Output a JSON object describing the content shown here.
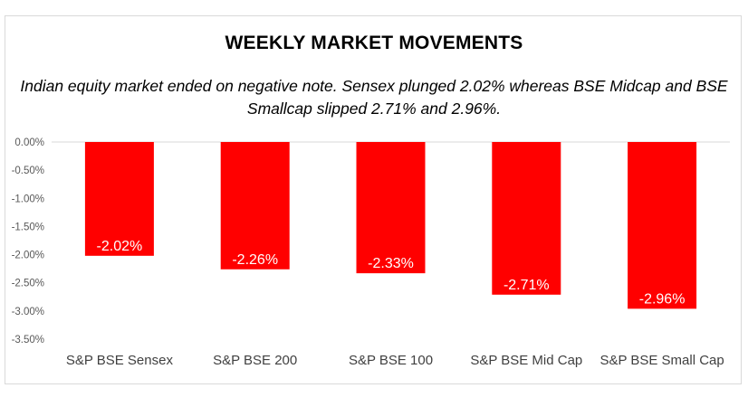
{
  "title": "WEEKLY MARKET MOVEMENTS",
  "subtitle": "Indian equity market ended on negative note. Sensex plunged 2.02% whereas BSE Midcap and BSE Smallcap slipped 2.71% and 2.96%.",
  "colors": {
    "bar": "#ff0000",
    "label_text": "#ffffff",
    "axis_text": "#595959",
    "category_text": "#404040",
    "axis_line": "#d9d9d9"
  },
  "chart_data": {
    "type": "bar",
    "title": "WEEKLY MARKET MOVEMENTS",
    "xlabel": "",
    "ylabel": "",
    "categories": [
      "S&P BSE Sensex",
      "S&P BSE 200",
      "S&P BSE 100",
      "S&P BSE Mid Cap",
      "S&P BSE Small Cap"
    ],
    "values": [
      -2.02,
      -2.26,
      -2.33,
      -2.71,
      -2.96
    ],
    "data_labels": [
      "-2.02%",
      "-2.26%",
      "-2.33%",
      "-2.71%",
      "-2.96%"
    ],
    "ylim": [
      -3.5,
      0
    ],
    "yticks": [
      0,
      -0.5,
      -1.0,
      -1.5,
      -2.0,
      -2.5,
      -3.0,
      -3.5
    ],
    "ytick_labels": [
      "0.00%",
      "-0.50%",
      "-1.00%",
      "-1.50%",
      "-2.00%",
      "-2.50%",
      "-3.00%",
      "-3.50%"
    ],
    "grid": false,
    "legend": "none"
  }
}
